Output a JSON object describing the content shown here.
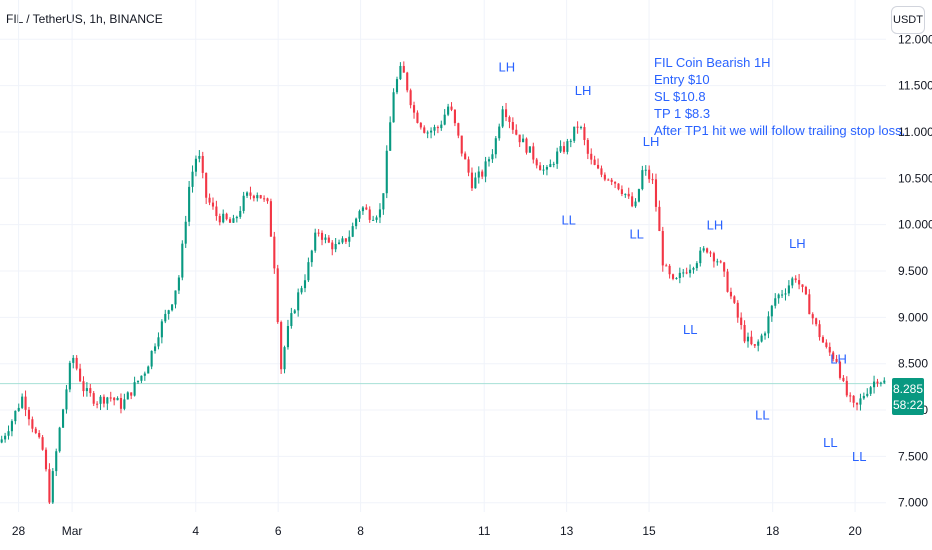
{
  "header": {
    "symbol_title": "FIL / TetherUS, 1h, BINANCE",
    "currency": "USDT"
  },
  "price_badge": {
    "price": "8.285",
    "countdown": "58:22",
    "color": "#089981"
  },
  "annotation_note": {
    "lines": [
      "FIL Coin Bearish 1H",
      "Entry $10",
      "SL $10.8",
      "TP 1 $8.3",
      "After TP1 hit we will follow trailing stop loss."
    ],
    "color": "#2962ff"
  },
  "chart_data": {
    "type": "candlestick",
    "symbol": "FIL/USDT",
    "interval": "1h",
    "colors": {
      "up": "#089981",
      "down": "#f23645",
      "current_price_line": "#a6e0d6",
      "annotation": "#2962ff"
    },
    "y_axis": {
      "min": 6.9,
      "max": 12.1,
      "ticks": [
        "12.000",
        "11.500",
        "11.000",
        "10.500",
        "10.000",
        "9.500",
        "9.000",
        "8.500",
        "8.000",
        "7.500",
        "7.000"
      ]
    },
    "x_axis": {
      "range_days": [
        -0.75,
        20.75
      ],
      "ticks": [
        {
          "day": -0.3,
          "label": "28"
        },
        {
          "day": 1,
          "label": "Mar"
        },
        {
          "day": 4,
          "label": "4"
        },
        {
          "day": 6,
          "label": "6"
        },
        {
          "day": 8,
          "label": "8"
        },
        {
          "day": 11,
          "label": "11"
        },
        {
          "day": 13,
          "label": "13"
        },
        {
          "day": 15,
          "label": "15"
        },
        {
          "day": 18,
          "label": "18"
        },
        {
          "day": 20,
          "label": "20"
        }
      ]
    },
    "current_price": 8.285,
    "path": [
      [
        -0.75,
        7.65
      ],
      [
        -0.45,
        7.9
      ],
      [
        -0.2,
        8.15
      ],
      [
        0.1,
        7.75
      ],
      [
        0.3,
        7.55
      ],
      [
        0.45,
        7.05
      ],
      [
        0.7,
        7.8
      ],
      [
        1.0,
        8.6
      ],
      [
        1.3,
        8.2
      ],
      [
        1.6,
        8.1
      ],
      [
        1.9,
        8.15
      ],
      [
        2.2,
        8.05
      ],
      [
        2.5,
        8.25
      ],
      [
        2.8,
        8.45
      ],
      [
        3.1,
        8.85
      ],
      [
        3.4,
        9.15
      ],
      [
        3.6,
        9.45
      ],
      [
        3.85,
        10.45
      ],
      [
        4.05,
        10.8
      ],
      [
        4.25,
        10.3
      ],
      [
        4.5,
        10.1
      ],
      [
        4.9,
        10.0
      ],
      [
        5.2,
        10.3
      ],
      [
        5.5,
        10.35
      ],
      [
        5.75,
        10.2
      ],
      [
        5.95,
        9.4
      ],
      [
        6.05,
        8.4
      ],
      [
        6.2,
        8.8
      ],
      [
        6.45,
        9.2
      ],
      [
        6.7,
        9.5
      ],
      [
        6.95,
        9.95
      ],
      [
        7.2,
        9.8
      ],
      [
        7.45,
        9.75
      ],
      [
        7.75,
        9.9
      ],
      [
        8.0,
        10.2
      ],
      [
        8.25,
        10.1
      ],
      [
        8.5,
        10.15
      ],
      [
        8.8,
        11.45
      ],
      [
        9.0,
        11.7
      ],
      [
        9.3,
        11.2
      ],
      [
        9.6,
        11.0
      ],
      [
        9.9,
        11.05
      ],
      [
        10.15,
        11.3
      ],
      [
        10.45,
        10.8
      ],
      [
        10.7,
        10.45
      ],
      [
        10.95,
        10.55
      ],
      [
        11.25,
        10.85
      ],
      [
        11.45,
        11.3
      ],
      [
        11.75,
        11.0
      ],
      [
        12.0,
        10.85
      ],
      [
        12.25,
        10.7
      ],
      [
        12.5,
        10.55
      ],
      [
        12.75,
        10.75
      ],
      [
        13.0,
        10.85
      ],
      [
        13.3,
        11.1
      ],
      [
        13.55,
        10.7
      ],
      [
        13.8,
        10.55
      ],
      [
        14.1,
        10.5
      ],
      [
        14.4,
        10.35
      ],
      [
        14.65,
        10.15
      ],
      [
        14.85,
        10.6
      ],
      [
        15.1,
        10.45
      ],
      [
        15.35,
        9.55
      ],
      [
        15.6,
        9.35
      ],
      [
        15.85,
        9.5
      ],
      [
        16.1,
        9.6
      ],
      [
        16.4,
        9.75
      ],
      [
        16.7,
        9.6
      ],
      [
        17.0,
        9.2
      ],
      [
        17.3,
        8.8
      ],
      [
        17.55,
        8.65
      ],
      [
        17.8,
        8.85
      ],
      [
        18.05,
        9.2
      ],
      [
        18.3,
        9.3
      ],
      [
        18.55,
        9.45
      ],
      [
        18.8,
        9.2
      ],
      [
        19.05,
        8.9
      ],
      [
        19.3,
        8.65
      ],
      [
        19.55,
        8.55
      ],
      [
        19.75,
        8.2
      ],
      [
        20.0,
        8.0
      ],
      [
        20.25,
        8.2
      ],
      [
        20.55,
        8.35
      ],
      [
        20.75,
        8.285
      ]
    ],
    "annotations": [
      {
        "label": "LH",
        "day": 11.55,
        "price": 11.65
      },
      {
        "label": "LH",
        "day": 13.4,
        "price": 11.4
      },
      {
        "label": "LL",
        "day": 13.05,
        "price": 10.0
      },
      {
        "label": "LH",
        "day": 15.05,
        "price": 10.85
      },
      {
        "label": "LL",
        "day": 14.7,
        "price": 9.85
      },
      {
        "label": "LH",
        "day": 16.6,
        "price": 9.95
      },
      {
        "label": "LL",
        "day": 16.0,
        "price": 8.82
      },
      {
        "label": "LH",
        "day": 18.6,
        "price": 9.75
      },
      {
        "label": "LL",
        "day": 17.75,
        "price": 7.9
      },
      {
        "label": "LH",
        "day": 19.6,
        "price": 8.5
      },
      {
        "label": "LL",
        "day": 19.4,
        "price": 7.6
      },
      {
        "label": "LL",
        "day": 20.1,
        "price": 7.45
      }
    ]
  }
}
